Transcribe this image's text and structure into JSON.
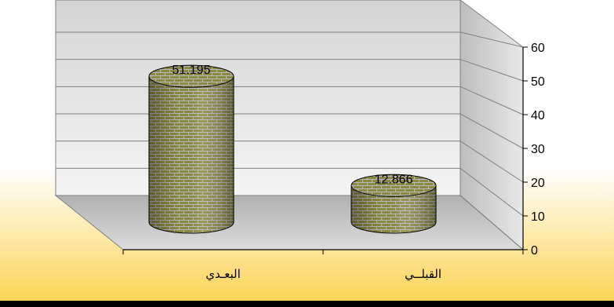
{
  "chart_data": {
    "type": "bar",
    "style": "3d-cylinder",
    "categories": [
      "البعـدي",
      "القبلــي"
    ],
    "values": [
      51.195,
      12.866
    ],
    "data_labels": [
      "51.195",
      "12.866"
    ],
    "ylim": [
      0,
      60
    ],
    "yticks": [
      "0",
      "10",
      "20",
      "30",
      "40",
      "50",
      "60"
    ],
    "grid": true,
    "legend": "none",
    "title": "",
    "xlabel": "",
    "ylabel": ""
  },
  "colors": {
    "frame_top": "#ffffff",
    "frame_bottom": "#fbd55a",
    "bar_base": "#8a8a3a",
    "brick_mortar": "#b8b8c8",
    "wall": "#e6e6e6",
    "floor": "#c8c8c8"
  }
}
